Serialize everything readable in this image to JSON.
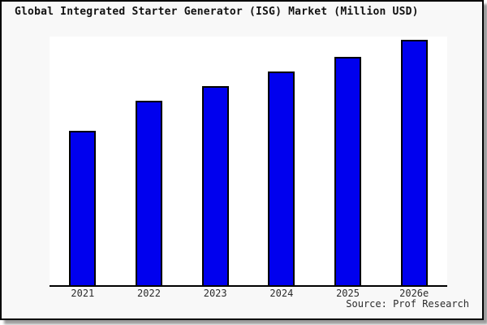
{
  "title": "Global Integrated Starter Generator (ISG) Market (Million USD)",
  "source_credit": "Source: Prof Research",
  "chart_data": {
    "type": "bar",
    "title": "Global Integrated Starter Generator (ISG) Market (Million USD)",
    "categories": [
      "2021",
      "2022",
      "2023",
      "2024",
      "2025",
      "2026e"
    ],
    "values": [
      63,
      75,
      81,
      87,
      93,
      100
    ],
    "values_note": "No y-axis scale or data labels are shown in the chart; values are estimated relative bar heights indexed to 2026e = 100",
    "xlabel": "",
    "ylabel": "",
    "ylim": [
      0,
      103
    ],
    "grid": false,
    "y_axis_visible": false,
    "legend_position": "none",
    "bar_color": "#0000ee",
    "bar_border_color": "#000000"
  },
  "colors": {
    "figure_background": "#f8f8f8",
    "plot_background": "#ffffff",
    "frame_border": "#000000",
    "axis_line": "#000000",
    "text": "#2b2b2b",
    "shadow": "#9b9b9b"
  }
}
